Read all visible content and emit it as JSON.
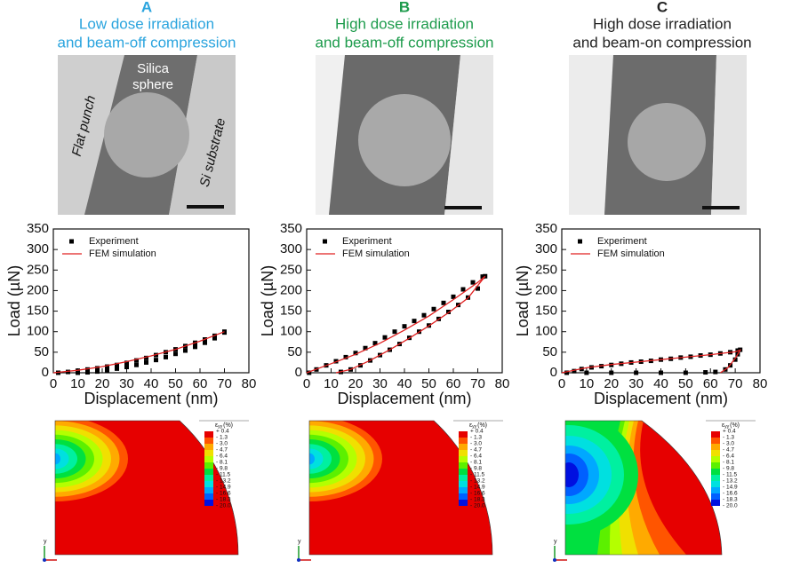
{
  "panels": [
    {
      "letter": "A",
      "title": [
        "Low dose irradiation",
        "and beam-off compression"
      ],
      "color": "#2aa4de"
    },
    {
      "letter": "B",
      "title": [
        "High dose irradiation",
        "and beam-off compression"
      ],
      "color": "#1d9b4c"
    },
    {
      "letter": "C",
      "title": [
        "High dose irradiation",
        "and beam-on compression"
      ],
      "color": "#222222"
    }
  ],
  "micrograph_labels": {
    "sphere": [
      "Silica",
      "sphere"
    ],
    "punch": "Flat punch",
    "substrate": "Si substrate"
  },
  "chart_data": [
    {
      "type": "line",
      "xlabel": "Displacement (nm)",
      "ylabel": "Load (µN)",
      "xlim": [
        0,
        80
      ],
      "ylim": [
        0,
        350
      ],
      "xticks": [
        0,
        10,
        20,
        30,
        40,
        50,
        60,
        70,
        80
      ],
      "yticks": [
        0,
        50,
        100,
        150,
        200,
        250,
        300,
        350
      ],
      "legend": "upper left",
      "series": [
        {
          "name": "Experiment",
          "color": "#000000",
          "marker": "square",
          "x": [
            2,
            6,
            10,
            14,
            18,
            22,
            26,
            30,
            34,
            38,
            42,
            46,
            50,
            54,
            58,
            62,
            66,
            70,
            70,
            66,
            62,
            58,
            54,
            50,
            46,
            42,
            38,
            34,
            30,
            26,
            22,
            18,
            14,
            10
          ],
          "values": [
            0,
            2,
            5,
            8,
            11,
            15,
            19,
            24,
            30,
            36,
            43,
            50,
            57,
            65,
            73,
            81,
            90,
            100,
            98,
            84,
            73,
            63,
            54,
            46,
            38,
            31,
            25,
            19,
            14,
            10,
            6,
            3,
            1,
            0
          ]
        },
        {
          "name": "FEM simulation",
          "color": "#e02020",
          "marker": "none",
          "x": [
            0,
            10,
            20,
            30,
            40,
            50,
            60,
            70
          ],
          "values": [
            0,
            6,
            15,
            27,
            41,
            57,
            77,
            100
          ]
        }
      ]
    },
    {
      "type": "line",
      "xlabel": "Displacement (nm)",
      "ylabel": "Load (µN)",
      "xlim": [
        0,
        80
      ],
      "ylim": [
        0,
        350
      ],
      "xticks": [
        0,
        10,
        20,
        30,
        40,
        50,
        60,
        70,
        80
      ],
      "yticks": [
        0,
        50,
        100,
        150,
        200,
        250,
        300,
        350
      ],
      "legend": "upper left",
      "series": [
        {
          "name": "Experiment",
          "color": "#000000",
          "marker": "square",
          "x": [
            1,
            4,
            8,
            12,
            16,
            20,
            24,
            28,
            32,
            36,
            40,
            44,
            48,
            52,
            56,
            60,
            64,
            68,
            72,
            73,
            70,
            66,
            62,
            58,
            54,
            50,
            46,
            42,
            38,
            34,
            30,
            26,
            22,
            18,
            14
          ],
          "values": [
            0,
            8,
            18,
            28,
            38,
            48,
            60,
            72,
            86,
            100,
            113,
            126,
            140,
            155,
            170,
            185,
            203,
            220,
            234,
            235,
            205,
            183,
            165,
            148,
            131,
            115,
            100,
            85,
            70,
            56,
            43,
            30,
            18,
            8,
            2
          ]
        },
        {
          "name": "FEM simulation",
          "color": "#e02020",
          "marker": "none",
          "x": [
            0,
            10,
            20,
            30,
            40,
            50,
            60,
            70,
            73,
            66,
            58,
            50,
            42,
            34,
            26,
            18,
            12
          ],
          "values": [
            0,
            22,
            45,
            72,
            104,
            138,
            178,
            220,
            235,
            182,
            146,
            114,
            84,
            56,
            30,
            8,
            0
          ]
        }
      ]
    },
    {
      "type": "line",
      "xlabel": "Displacement (nm)",
      "ylabel": "Load (µN)",
      "xlim": [
        0,
        80
      ],
      "ylim": [
        0,
        350
      ],
      "xticks": [
        0,
        10,
        20,
        30,
        40,
        50,
        60,
        70,
        80
      ],
      "yticks": [
        0,
        50,
        100,
        150,
        200,
        250,
        300,
        350
      ],
      "legend": "upper left",
      "series": [
        {
          "name": "Experiment",
          "color": "#000000",
          "marker": "square",
          "x": [
            2,
            5,
            8,
            12,
            16,
            20,
            24,
            28,
            32,
            36,
            40,
            44,
            48,
            52,
            56,
            60,
            64,
            68,
            71,
            72,
            71,
            70,
            68,
            66,
            62,
            58,
            50,
            40,
            30,
            20,
            10
          ],
          "values": [
            0,
            4,
            9,
            13,
            16,
            19,
            22,
            25,
            27,
            29,
            32,
            34,
            37,
            39,
            42,
            44,
            47,
            50,
            54,
            56,
            45,
            32,
            18,
            8,
            2,
            1,
            0,
            0,
            0,
            0,
            0
          ]
        },
        {
          "name": "FEM simulation",
          "color": "#e02020",
          "marker": "none",
          "x": [
            0,
            10,
            20,
            30,
            40,
            50,
            60,
            70,
            72,
            70,
            67,
            64
          ],
          "values": [
            0,
            12,
            20,
            26,
            32,
            38,
            44,
            51,
            55,
            35,
            12,
            0
          ]
        }
      ]
    }
  ],
  "contour_legend": {
    "symbol": "ε",
    "subscript": "yy",
    "unit": "(%)",
    "levels": [
      "+ 0.4",
      "- 1.3",
      "- 3.0",
      "- 4.7",
      "- 6.4",
      "- 8.1",
      "- 9.8",
      "- 11.5",
      "- 13.2",
      "- 14.9",
      "- 16.6",
      "- 18.3",
      "- 20.0"
    ],
    "colors": [
      "#e60000",
      "#ff5500",
      "#ffaa00",
      "#f0e000",
      "#b4ff00",
      "#5cf000",
      "#00e040",
      "#00f0a0",
      "#00e0e0",
      "#00a8ff",
      "#0060ff",
      "#0010e0"
    ]
  },
  "triad_label": "y"
}
